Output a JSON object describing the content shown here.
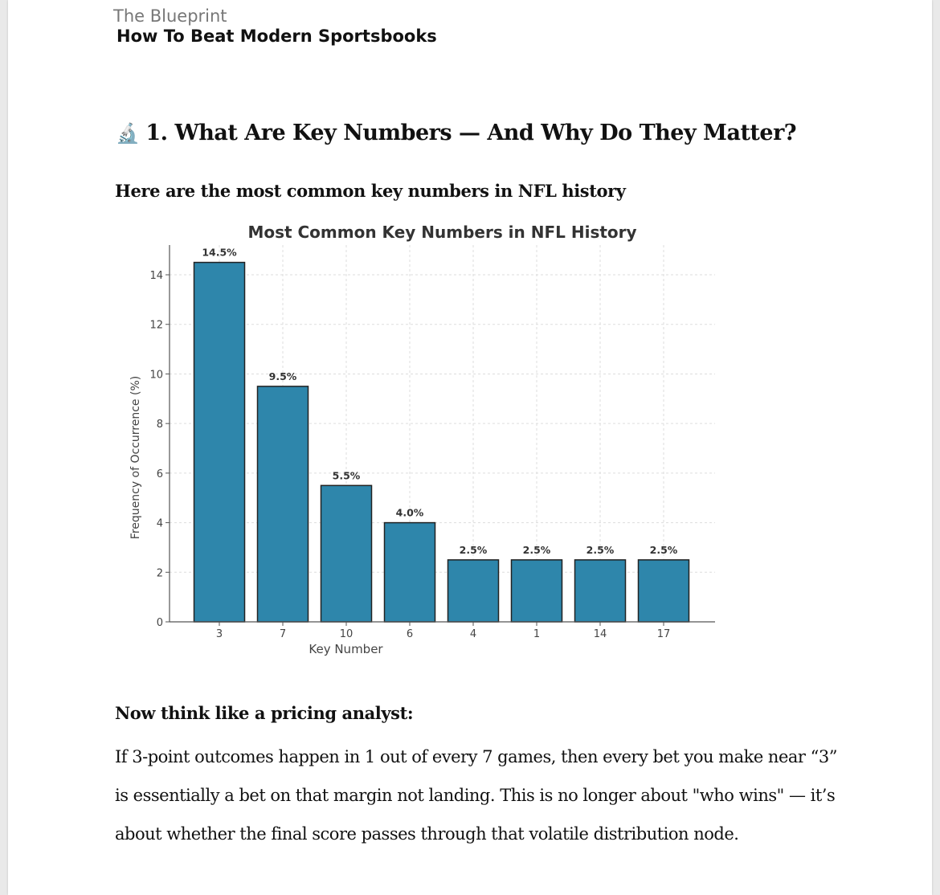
{
  "header": {
    "series": "The Blueprint",
    "title": "How To Beat Modern Sportsbooks"
  },
  "section": {
    "icon": "microscope-icon",
    "icon_glyph": "🔬",
    "heading": "1. What Are Key Numbers — And Why Do They Matter?"
  },
  "subheading": "Here are the most common key numbers in NFL history",
  "chart_data": {
    "type": "bar",
    "title": "Most Common Key Numbers in NFL History",
    "xlabel": "Key Number",
    "ylabel": "Frequency of Occurrence (%)",
    "categories": [
      "3",
      "7",
      "10",
      "6",
      "4",
      "1",
      "14",
      "17"
    ],
    "values": [
      14.5,
      9.5,
      5.5,
      4.0,
      2.5,
      2.5,
      2.5,
      2.5
    ],
    "data_labels": [
      "14.5%",
      "9.5%",
      "5.5%",
      "4.0%",
      "2.5%",
      "2.5%",
      "2.5%",
      "2.5%"
    ],
    "yticks": [
      "0",
      "2",
      "4",
      "6",
      "8",
      "10",
      "12",
      "14"
    ],
    "ylim": [
      0,
      15.2
    ],
    "grid": true,
    "bar_color": "#2e86ab",
    "edge_color": "#222222"
  },
  "analysis": {
    "heading": "Now think like a pricing analyst:",
    "body": " If 3-point outcomes happen in 1 out of every 7 games, then every bet you make near “3” is essentially a bet on that margin not landing. This is no longer about \"who wins\" — it’s about whether the final score passes through that volatile distribution node."
  }
}
